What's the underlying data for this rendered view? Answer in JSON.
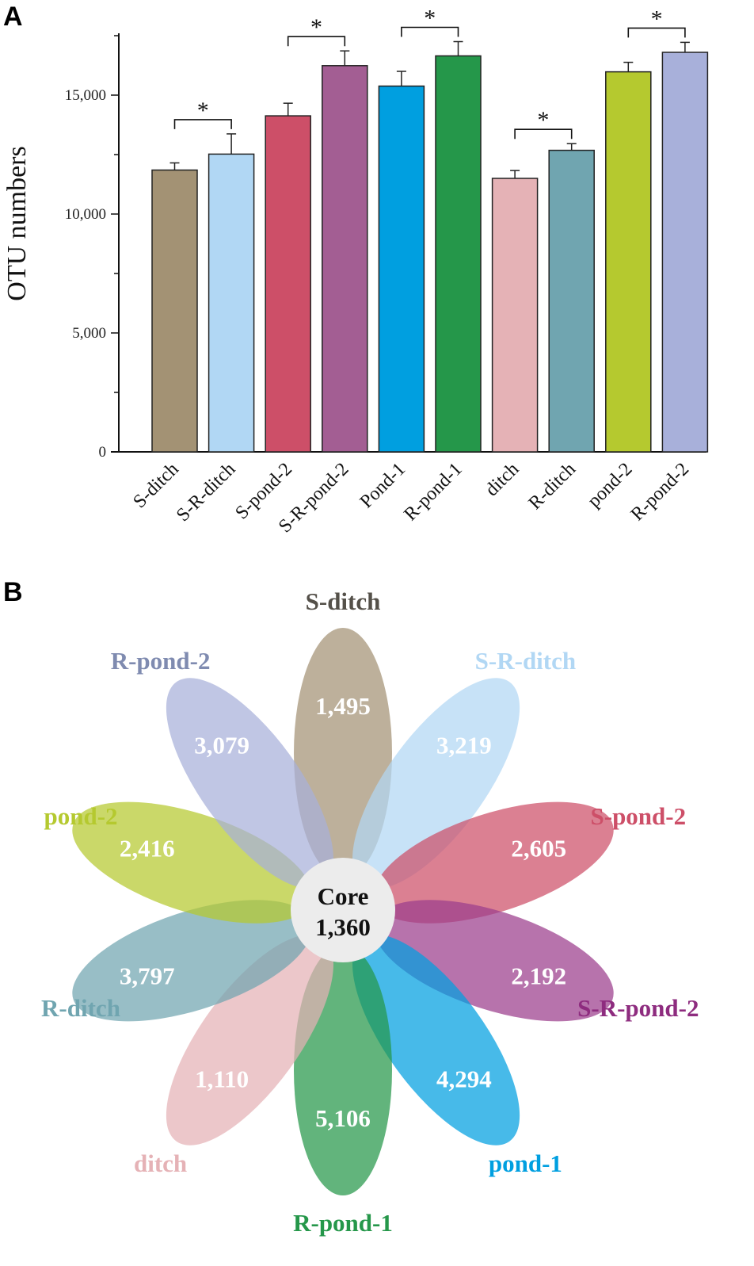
{
  "figure": {
    "panel_a_letter": "A",
    "panel_b_letter": "B"
  },
  "chart_data": [
    {
      "type": "bar",
      "ylabel": "OTU numbers",
      "xlabel": "",
      "ylim": [
        0,
        17600
      ],
      "yticks": [
        0,
        5000,
        10000,
        15000
      ],
      "ytick_labels": [
        "0",
        "5,000",
        "10,000",
        "15,000"
      ],
      "categories": [
        "S-ditch",
        "S-R-ditch",
        "S-pond-2",
        "S-R-pond-2",
        "Pond-1",
        "R-pond-1",
        "ditch",
        "R-ditch",
        "pond-2",
        "R-pond-2"
      ],
      "values": [
        11850,
        12520,
        14130,
        16240,
        15380,
        16650,
        11500,
        12680,
        15980,
        16800
      ],
      "errors": [
        300,
        850,
        530,
        620,
        620,
        600,
        330,
        280,
        400,
        420
      ],
      "colors": [
        "#a39274",
        "#b1d7f4",
        "#cd4f68",
        "#a35e93",
        "#009fe0",
        "#25974a",
        "#e5b2b6",
        "#70a5b0",
        "#b5c92f",
        "#a8b0da"
      ],
      "significance": [
        {
          "pair": [
            0,
            1
          ],
          "label": "*"
        },
        {
          "pair": [
            2,
            3
          ],
          "label": "*"
        },
        {
          "pair": [
            4,
            5
          ],
          "label": "*"
        },
        {
          "pair": [
            6,
            7
          ],
          "label": "*"
        },
        {
          "pair": [
            8,
            9
          ],
          "label": "*"
        }
      ]
    },
    {
      "type": "flower-venn",
      "core": {
        "label": "Core",
        "value": "1,360"
      },
      "petals": [
        {
          "name": "S-ditch",
          "count": "1,495",
          "color": "#a39274",
          "label_color": "#545049",
          "angle": 0
        },
        {
          "name": "S-R-ditch",
          "count": "3,219",
          "color": "#b1d7f4",
          "label_color": "#b1d7f4",
          "angle": 36
        },
        {
          "name": "S-pond-2",
          "count": "2,605",
          "color": "#cd4f68",
          "label_color": "#cd4f68",
          "angle": 72
        },
        {
          "name": "S-R-pond-2",
          "count": "2,192",
          "color": "#9b3d8c",
          "label_color": "#8e2c7f",
          "angle": 108
        },
        {
          "name": "pond-1",
          "count": "4,294",
          "color": "#009fe0",
          "label_color": "#009fe0",
          "angle": 144
        },
        {
          "name": "R-pond-1",
          "count": "5,106",
          "color": "#25974a",
          "label_color": "#25974a",
          "angle": 180
        },
        {
          "name": "ditch",
          "count": "1,110",
          "color": "#e5b2b6",
          "label_color": "#e5b2b6",
          "angle": 216
        },
        {
          "name": "R-ditch",
          "count": "3,797",
          "color": "#70a5b0",
          "label_color": "#70a5b0",
          "angle": 252
        },
        {
          "name": "pond-2",
          "count": "2,416",
          "color": "#b5c92f",
          "label_color": "#b5c92f",
          "angle": 288
        },
        {
          "name": "R-pond-2",
          "count": "3,079",
          "color": "#a8b0da",
          "label_color": "#7f8bb0",
          "angle": 324
        }
      ]
    }
  ]
}
